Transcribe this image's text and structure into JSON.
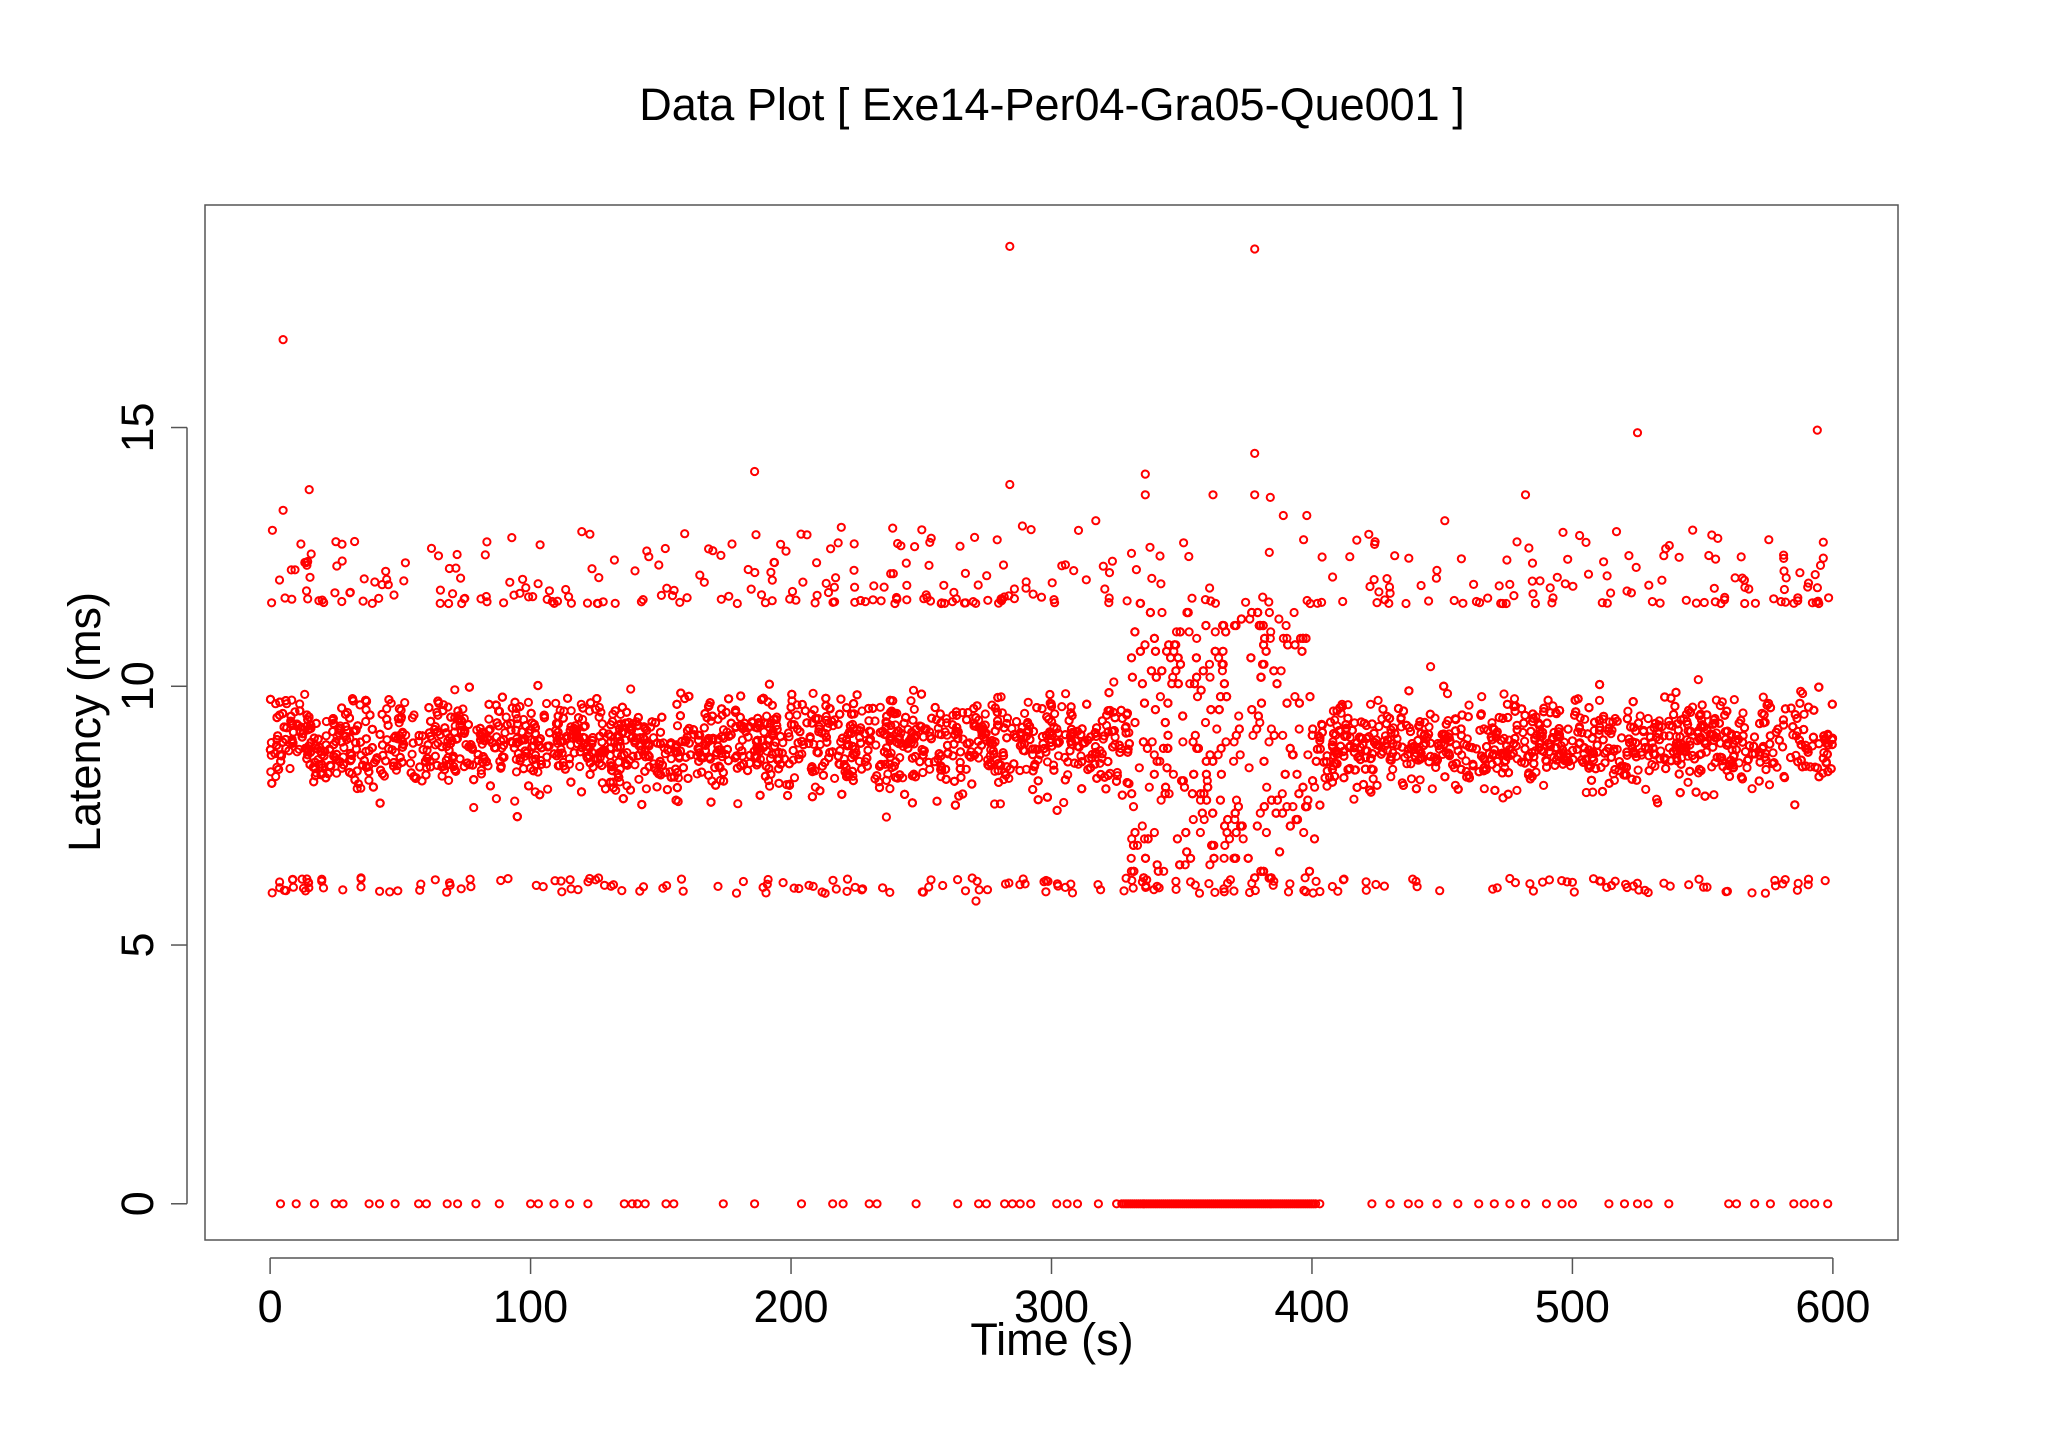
{
  "chart_data": {
    "type": "scatter",
    "title": "Data Plot [ Exe14-Per04-Gra05-Que001 ]",
    "xlabel": "Time (s)",
    "ylabel": "Latency (ms)",
    "xlim": [
      -25,
      625
    ],
    "ylim": [
      -0.7,
      19.3
    ],
    "xticks": [
      0,
      100,
      200,
      300,
      400,
      500,
      600
    ],
    "yticks": [
      0,
      5,
      10,
      15
    ],
    "xtick_labels": [
      "0",
      "100",
      "200",
      "300",
      "400",
      "500",
      "600"
    ],
    "ytick_labels": [
      "0",
      "5",
      "10",
      "15"
    ],
    "grid": false,
    "legend": "none",
    "marker": "open-circle",
    "color": "#ff0000",
    "series": [
      {
        "description_range": "dense band of samples between about 6 and 11.5 ms over 0–600 s; quantized levels between ~330 s and ~402 s",
        "band": {
          "x": [
            0,
            600
          ],
          "y_min": 6.1,
          "y_max": 11.6,
          "quantized_x_range": [
            330,
            402
          ]
        },
        "outliers": [
          {
            "x": 5,
            "y": 16.7
          },
          {
            "x": 284,
            "y": 18.5
          },
          {
            "x": 378,
            "y": 18.45
          },
          {
            "x": 525,
            "y": 14.9
          },
          {
            "x": 594,
            "y": 14.95
          },
          {
            "x": 186,
            "y": 14.15
          },
          {
            "x": 336,
            "y": 14.1
          },
          {
            "x": 378,
            "y": 14.5
          },
          {
            "x": 284,
            "y": 13.9
          },
          {
            "x": 15,
            "y": 13.8
          },
          {
            "x": 336,
            "y": 13.7
          },
          {
            "x": 362,
            "y": 13.7
          },
          {
            "x": 378,
            "y": 13.7
          },
          {
            "x": 384,
            "y": 13.65
          },
          {
            "x": 482,
            "y": 13.7
          },
          {
            "x": 5,
            "y": 13.4
          },
          {
            "x": 317,
            "y": 13.2
          },
          {
            "x": 389,
            "y": 13.3
          },
          {
            "x": 398,
            "y": 13.3
          },
          {
            "x": 451,
            "y": 13.2
          },
          {
            "x": 271,
            "y": 5.85
          }
        ],
        "zero_points_x": [
          4,
          10,
          17,
          25,
          28,
          38,
          42,
          48,
          57,
          60,
          68,
          72,
          79,
          88,
          100,
          103,
          109,
          115,
          122,
          136,
          139,
          141,
          144,
          152,
          155,
          174,
          186,
          204,
          216,
          220,
          230,
          233,
          248,
          264,
          272,
          275,
          282,
          285,
          288,
          292,
          302,
          306,
          310,
          318,
          325,
          403,
          423,
          430,
          437,
          441,
          448,
          456,
          464,
          470,
          476,
          482,
          490,
          496,
          500,
          514,
          520,
          525,
          529,
          537,
          560,
          563,
          570,
          576,
          585,
          589,
          593,
          598
        ],
        "zero_dense_x_range": [
          327,
          402
        ]
      }
    ]
  }
}
